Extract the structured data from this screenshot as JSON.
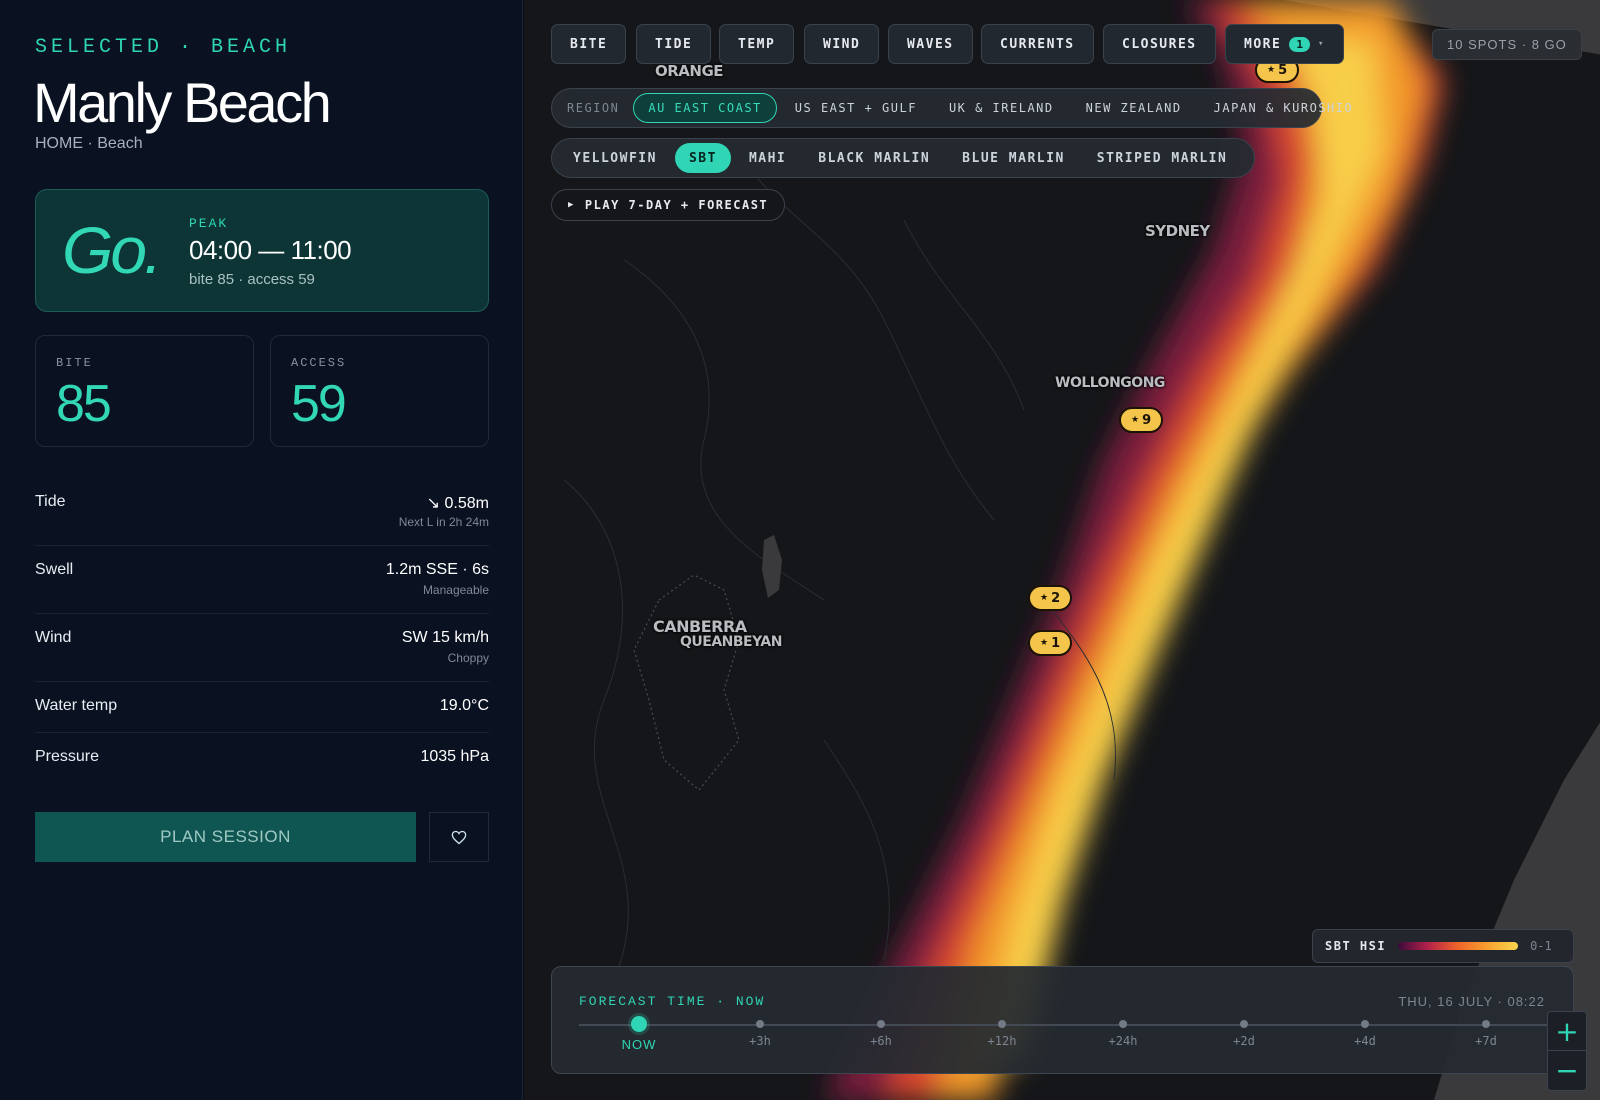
{
  "panel": {
    "selected_label": "SELECTED · BEACH",
    "title": "Manly Beach",
    "subtitle": "HOME · Beach",
    "verdict": {
      "word": "Go.",
      "peak_label": "PEAK",
      "peak_time": "04:00 — 11:00",
      "peak_sub": "bite 85 · access 59"
    },
    "stats": {
      "bite": {
        "label": "BITE",
        "value": "85"
      },
      "access": {
        "label": "ACCESS",
        "value": "59"
      }
    },
    "conditions": [
      {
        "name": "Tide",
        "value": "↘ 0.58m",
        "sub": "Next L in 2h 24m"
      },
      {
        "name": "Swell",
        "value": "1.2m SSE · 6s",
        "sub": "Manageable"
      },
      {
        "name": "Wind",
        "value": "SW 15 km/h",
        "sub": "Choppy"
      },
      {
        "name": "Water temp",
        "value": "19.0°C",
        "sub": ""
      },
      {
        "name": "Pressure",
        "value": "1035 hPa",
        "sub": ""
      }
    ],
    "plan_button": "PLAN SESSION",
    "favorite_icon": "heart-icon"
  },
  "map": {
    "layer_tabs": [
      {
        "label": "BITE"
      },
      {
        "label": "TIDE"
      },
      {
        "label": "TEMP"
      },
      {
        "label": "WIND"
      },
      {
        "label": "WAVES"
      },
      {
        "label": "CURRENTS"
      },
      {
        "label": "CLOSURES"
      }
    ],
    "more": {
      "label": "MORE",
      "badge": "1",
      "caret": "▾"
    },
    "summary": "10 SPOTS · 8 GO",
    "region": {
      "label": "REGION",
      "options": [
        "AU EAST COAST",
        "US EAST + GULF",
        "UK & IRELAND",
        "NEW ZEALAND",
        "JAPAN & KUROSHIO"
      ],
      "selected": "AU EAST COAST"
    },
    "species": {
      "options": [
        "YELLOWFIN",
        "SBT",
        "MAHI",
        "BLACK MARLIN",
        "BLUE MARLIN",
        "STRIPED MARLIN"
      ],
      "selected": "SBT"
    },
    "play_button": {
      "icon": "▶",
      "label": "PLAY 7-DAY + FORECAST"
    },
    "cities": [
      "ORANGE",
      "SYDNEY",
      "WOLLONGONG",
      "CANBERRA",
      "QUEANBEYAN"
    ],
    "spot_pins": [
      {
        "label": "5"
      },
      {
        "label": "9"
      },
      {
        "label": "2"
      },
      {
        "label": "1"
      }
    ],
    "pin_star": "★",
    "legend": {
      "title": "SBT HSI",
      "range": "0-1",
      "gradient_colors": [
        "#3b0a3a",
        "#b3224a",
        "#f0642a",
        "#f8a22f",
        "#f9d44e"
      ]
    },
    "timeline": {
      "label": "FORECAST TIME · NOW",
      "date": "THU, 16 JULY · 08:22",
      "steps": [
        "NOW",
        "+3h",
        "+6h",
        "+12h",
        "+24h",
        "+2d",
        "+4d",
        "+7d"
      ],
      "active_step": "NOW"
    },
    "zoom": {
      "in": "+",
      "out": "−"
    }
  },
  "colors": {
    "accent": "#2fd5b4",
    "panel_bg": "#0a1120",
    "pin": "#f4c54a"
  }
}
